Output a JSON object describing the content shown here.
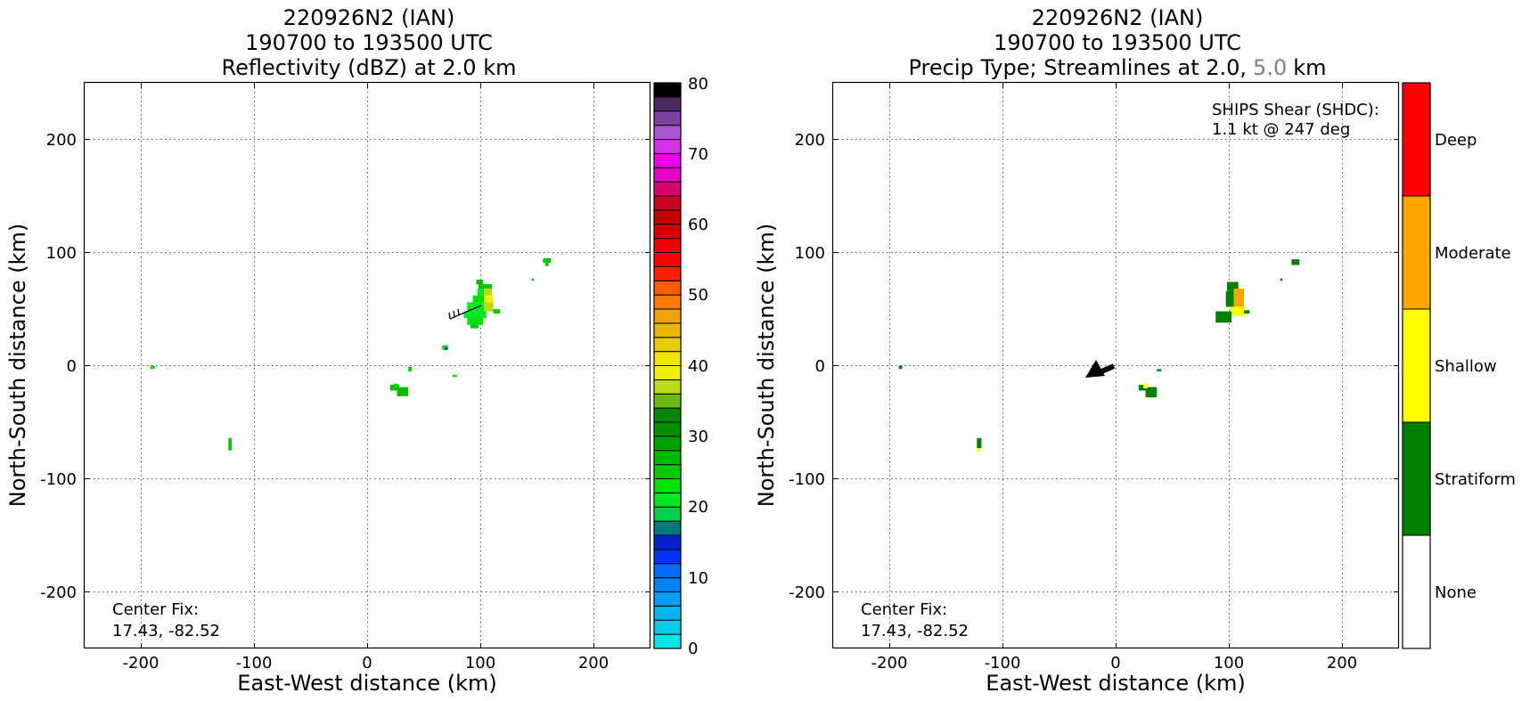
{
  "chart_data": [
    {
      "type": "heatmap",
      "title_lines": [
        "220926N2 (IAN)",
        "190700 to 193500 UTC",
        "Reflectivity (dBZ) at 2.0 km"
      ],
      "xlabel": "East-West distance (km)",
      "ylabel": "North-South distance (km)",
      "xlim": [
        -250,
        250
      ],
      "ylim": [
        -250,
        250
      ],
      "xticks": [
        -200,
        -100,
        0,
        100,
        200
      ],
      "yticks": [
        -200,
        -100,
        0,
        100,
        200
      ],
      "grid": true,
      "annotation_lines": [
        "Center Fix:",
        "17.43, -82.52"
      ],
      "colorbar": {
        "range": [
          0,
          80
        ],
        "step": 2.5,
        "ticks": [
          0,
          10,
          20,
          30,
          40,
          50,
          60,
          70,
          80
        ],
        "colors": [
          "#00e5e5",
          "#00cdeb",
          "#00b4f0",
          "#009cf5",
          "#0084fa",
          "#006cff",
          "#0032ff",
          "#0022cc",
          "#007a78",
          "#00d04a",
          "#00e820",
          "#00df00",
          "#00cb00",
          "#00b800",
          "#00a300",
          "#008f00",
          "#00880a",
          "#6cba10",
          "#b8dc10",
          "#f0f000",
          "#f2e200",
          "#eacd00",
          "#e8b800",
          "#efa300",
          "#ff7c00",
          "#ff5c00",
          "#ff2000",
          "#ff0000",
          "#ec0000",
          "#d80000",
          "#c40000",
          "#cc0020",
          "#d9006e",
          "#e800c8",
          "#ee00ee",
          "#d432e8",
          "#a856d0",
          "#7c40a0",
          "#4c2c60",
          "#000000"
        ]
      },
      "cells": [
        {
          "x": 155,
          "y": 91,
          "w": 7,
          "h": 4,
          "c": "#00cb00"
        },
        {
          "x": 157,
          "y": 88,
          "w": 3,
          "h": 3,
          "c": "#00cb00"
        },
        {
          "x": 145,
          "y": 75,
          "w": 2,
          "h": 2,
          "c": "#00cb00"
        },
        {
          "x": 96,
          "y": 72,
          "w": 6,
          "h": 4,
          "c": "#00b800"
        },
        {
          "x": 98,
          "y": 68,
          "w": 12,
          "h": 4,
          "c": "#00cb00"
        },
        {
          "x": 97,
          "y": 62,
          "w": 6,
          "h": 6,
          "c": "#00e820"
        },
        {
          "x": 103,
          "y": 62,
          "w": 7,
          "h": 6,
          "c": "#b8dc10"
        },
        {
          "x": 93,
          "y": 56,
          "w": 10,
          "h": 6,
          "c": "#00df00"
        },
        {
          "x": 103,
          "y": 56,
          "w": 8,
          "h": 6,
          "c": "#f0f000"
        },
        {
          "x": 88,
          "y": 48,
          "w": 15,
          "h": 8,
          "c": "#00e820"
        },
        {
          "x": 103,
          "y": 48,
          "w": 8,
          "h": 8,
          "c": "#b8dc10"
        },
        {
          "x": 111,
          "y": 46,
          "w": 6,
          "h": 4,
          "c": "#00cb00"
        },
        {
          "x": 85,
          "y": 42,
          "w": 20,
          "h": 6,
          "c": "#00e820"
        },
        {
          "x": 88,
          "y": 36,
          "w": 14,
          "h": 6,
          "c": "#00df00"
        },
        {
          "x": 91,
          "y": 33,
          "w": 7,
          "h": 3,
          "c": "#00cb00"
        },
        {
          "x": 66,
          "y": 14,
          "w": 5,
          "h": 4,
          "c": "#00df00"
        },
        {
          "x": 68,
          "y": 14,
          "w": 3,
          "h": 2,
          "c": "#0032ff"
        },
        {
          "x": 36,
          "y": -5,
          "w": 3,
          "h": 4,
          "c": "#00cb00"
        },
        {
          "x": 75,
          "y": -10,
          "w": 4,
          "h": 2,
          "c": "#00df00"
        },
        {
          "x": -192,
          "y": -3,
          "w": 4,
          "h": 3,
          "c": "#00df00"
        },
        {
          "x": 20,
          "y": -22,
          "w": 8,
          "h": 5,
          "c": "#00b800"
        },
        {
          "x": 26,
          "y": -27,
          "w": 10,
          "h": 8,
          "c": "#00b800"
        },
        {
          "x": 23,
          "y": -19,
          "w": 4,
          "h": 3,
          "c": "#00df00"
        },
        {
          "x": -123,
          "y": -75,
          "w": 3,
          "h": 11,
          "c": "#00cb00"
        }
      ]
    },
    {
      "type": "heatmap",
      "title_lines": [
        "220926N2 (IAN)",
        "190700 to 193500 UTC",
        "Precip Type; Streamlines at 2.0,",
        "5.0",
        "km"
      ],
      "xlabel": "East-West distance (km)",
      "ylabel": "North-South distance (km)",
      "xlim": [
        -250,
        250
      ],
      "ylim": [
        -250,
        250
      ],
      "xticks": [
        -200,
        -100,
        0,
        100,
        200
      ],
      "yticks": [
        -200,
        -100,
        0,
        100,
        200
      ],
      "grid": true,
      "annotation_lines": [
        "Center Fix:",
        "17.43, -82.52"
      ],
      "shear_lines": [
        "SHIPS Shear (SHDC):",
        "1.1 kt @ 247 deg"
      ],
      "shear_arrow": {
        "speed_kt": 1.1,
        "direction_deg": 247
      },
      "colorbar": {
        "categories": [
          "None",
          "Stratiform",
          "Shallow",
          "Moderate",
          "Deep"
        ],
        "colors": [
          "#ffffff",
          "#008000",
          "#ffff00",
          "#ffa500",
          "#ff0000"
        ]
      },
      "cells": [
        {
          "x": 155,
          "y": 89,
          "w": 7,
          "h": 5,
          "c": "#008000"
        },
        {
          "x": 145,
          "y": 75,
          "w": 2,
          "h": 2,
          "c": "#008000"
        },
        {
          "x": 98,
          "y": 66,
          "w": 10,
          "h": 8,
          "c": "#008000"
        },
        {
          "x": 104,
          "y": 52,
          "w": 9,
          "h": 16,
          "c": "#ffa500"
        },
        {
          "x": 97,
          "y": 52,
          "w": 7,
          "h": 14,
          "c": "#008000"
        },
        {
          "x": 100,
          "y": 44,
          "w": 6,
          "h": 8,
          "c": "#ffff00"
        },
        {
          "x": 106,
          "y": 44,
          "w": 8,
          "h": 8,
          "c": "#ffff00"
        },
        {
          "x": 113,
          "y": 46,
          "w": 5,
          "h": 3,
          "c": "#008000"
        },
        {
          "x": 88,
          "y": 38,
          "w": 14,
          "h": 10,
          "c": "#008000"
        },
        {
          "x": 36,
          "y": -5,
          "w": 4,
          "h": 2,
          "c": "#008000"
        },
        {
          "x": -192,
          "y": -3,
          "w": 3,
          "h": 3,
          "c": "#008000"
        },
        {
          "x": 20,
          "y": -22,
          "w": 8,
          "h": 5,
          "c": "#008000"
        },
        {
          "x": 26,
          "y": -28,
          "w": 10,
          "h": 9,
          "c": "#008000"
        },
        {
          "x": 24,
          "y": -20,
          "w": 4,
          "h": 4,
          "c": "#ffff00"
        },
        {
          "x": -123,
          "y": -73,
          "w": 4,
          "h": 9,
          "c": "#008000"
        },
        {
          "x": -123,
          "y": -76,
          "w": 3,
          "h": 3,
          "c": "#ffff00"
        }
      ]
    }
  ]
}
